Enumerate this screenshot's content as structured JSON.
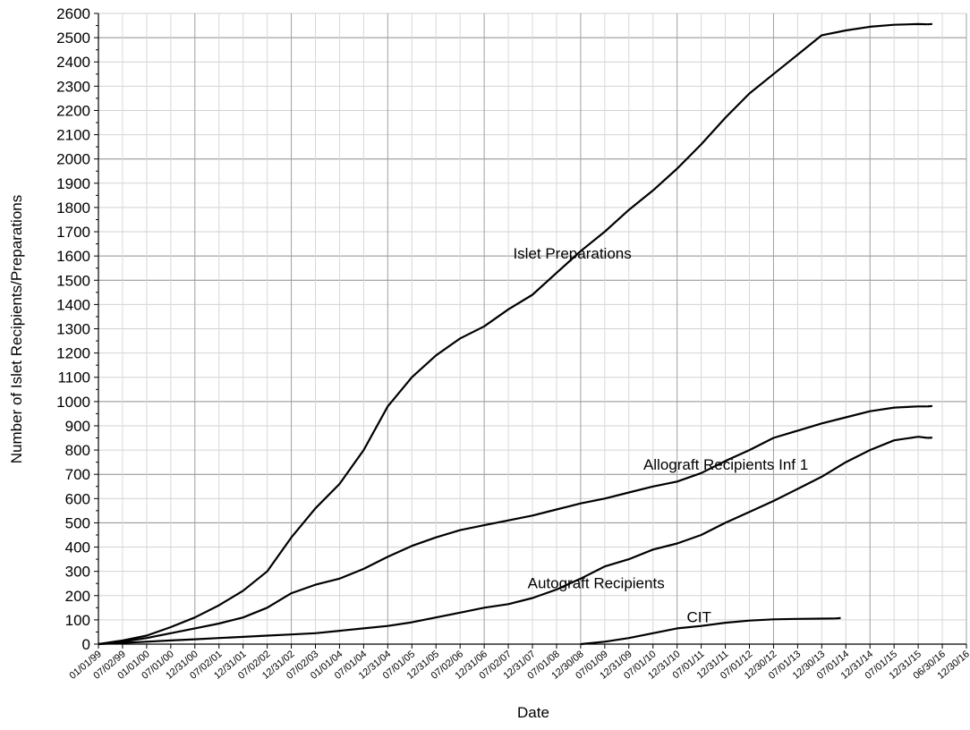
{
  "chart_data": {
    "type": "line",
    "xlabel": "Date",
    "ylabel": "Number of Islet Recipients/Preparations",
    "ylim": [
      0,
      2600
    ],
    "y_major_step": 100,
    "grid": true,
    "x_tick_labels": [
      "01/01/99",
      "07/02/99",
      "01/01/00",
      "07/01/00",
      "12/31/00",
      "07/02/01",
      "12/31/01",
      "07/02/02",
      "12/31/02",
      "07/02/03",
      "01/01/04",
      "07/01/04",
      "12/31/04",
      "07/01/05",
      "12/31/05",
      "07/02/06",
      "12/31/06",
      "07/02/07",
      "12/31/07",
      "07/01/08",
      "12/30/08",
      "07/01/09",
      "12/31/09",
      "07/01/10",
      "12/31/10",
      "07/01/11",
      "12/31/11",
      "07/01/12",
      "12/30/12",
      "07/01/13",
      "12/30/13",
      "07/01/14",
      "12/31/14",
      "07/01/15",
      "12/31/15",
      "06/30/16",
      "12/30/16"
    ],
    "x_tick_years": [
      1999,
      1999.5,
      2000,
      2000.5,
      2001,
      2001.5,
      2002,
      2002.5,
      2003,
      2003.5,
      2004,
      2004.5,
      2005,
      2005.5,
      2006,
      2006.5,
      2007,
      2007.5,
      2008,
      2008.5,
      2009,
      2009.5,
      2010,
      2010.5,
      2011,
      2011.5,
      2012,
      2012.5,
      2013,
      2013.5,
      2014,
      2014.5,
      2015,
      2015.5,
      2016,
      2016.5,
      2017
    ],
    "series": [
      {
        "name": "Islet Preparations",
        "x": [
          1999.0,
          1999.5,
          2000.0,
          2000.5,
          2001.0,
          2001.5,
          2002.0,
          2002.5,
          2003.0,
          2003.5,
          2004.0,
          2004.5,
          2005.0,
          2005.5,
          2006.0,
          2006.5,
          2007.0,
          2007.5,
          2008.0,
          2008.5,
          2009.0,
          2009.5,
          2010.0,
          2010.5,
          2011.0,
          2011.5,
          2012.0,
          2012.5,
          2013.0,
          2013.5,
          2014.0,
          2014.5,
          2015.0,
          2015.5,
          2016.0,
          2016.2
        ],
        "y": [
          0,
          15,
          35,
          70,
          110,
          160,
          220,
          300,
          440,
          560,
          660,
          800,
          980,
          1100,
          1190,
          1260,
          1310,
          1380,
          1440,
          1530,
          1620,
          1700,
          1790,
          1870,
          1960,
          2060,
          2170,
          2270,
          2350,
          2430,
          2510,
          2530,
          2545,
          2553,
          2556,
          2555
        ]
      },
      {
        "name": "Allograft Recipients Inf 1",
        "x": [
          1999.0,
          1999.5,
          2000.0,
          2000.5,
          2001.0,
          2001.5,
          2002.0,
          2002.5,
          2003.0,
          2003.5,
          2004.0,
          2004.5,
          2005.0,
          2005.5,
          2006.0,
          2006.5,
          2007.0,
          2007.5,
          2008.0,
          2008.5,
          2009.0,
          2009.5,
          2010.0,
          2010.5,
          2011.0,
          2011.5,
          2012.0,
          2012.5,
          2013.0,
          2013.5,
          2014.0,
          2014.5,
          2015.0,
          2015.5,
          2016.0,
          2016.2
        ],
        "y": [
          0,
          10,
          25,
          45,
          65,
          85,
          110,
          150,
          210,
          245,
          270,
          310,
          360,
          405,
          440,
          470,
          490,
          510,
          530,
          555,
          580,
          600,
          625,
          650,
          670,
          705,
          755,
          800,
          850,
          880,
          910,
          935,
          960,
          975,
          980,
          980
        ]
      },
      {
        "name": "Autograft Recipients",
        "x": [
          1999.0,
          1999.5,
          2000.0,
          2000.5,
          2001.0,
          2001.5,
          2002.0,
          2002.5,
          2003.0,
          2003.5,
          2004.0,
          2004.5,
          2005.0,
          2005.5,
          2006.0,
          2006.5,
          2007.0,
          2007.5,
          2008.0,
          2008.5,
          2009.0,
          2009.5,
          2010.0,
          2010.5,
          2011.0,
          2011.5,
          2012.0,
          2012.5,
          2013.0,
          2013.5,
          2014.0,
          2014.5,
          2015.0,
          2015.5,
          2016.0,
          2016.2
        ],
        "y": [
          0,
          5,
          10,
          15,
          20,
          25,
          30,
          35,
          40,
          45,
          55,
          65,
          75,
          90,
          110,
          130,
          150,
          165,
          190,
          225,
          270,
          320,
          350,
          390,
          415,
          450,
          500,
          545,
          590,
          640,
          690,
          750,
          800,
          840,
          855,
          850
        ]
      },
      {
        "name": "CIT",
        "x": [
          2009.0,
          2009.5,
          2010.0,
          2010.5,
          2011.0,
          2011.5,
          2012.0,
          2012.5,
          2013.0,
          2013.5,
          2014.0,
          2014.3
        ],
        "y": [
          0,
          10,
          25,
          45,
          65,
          75,
          88,
          97,
          102,
          104,
          105,
          106
        ]
      }
    ]
  }
}
